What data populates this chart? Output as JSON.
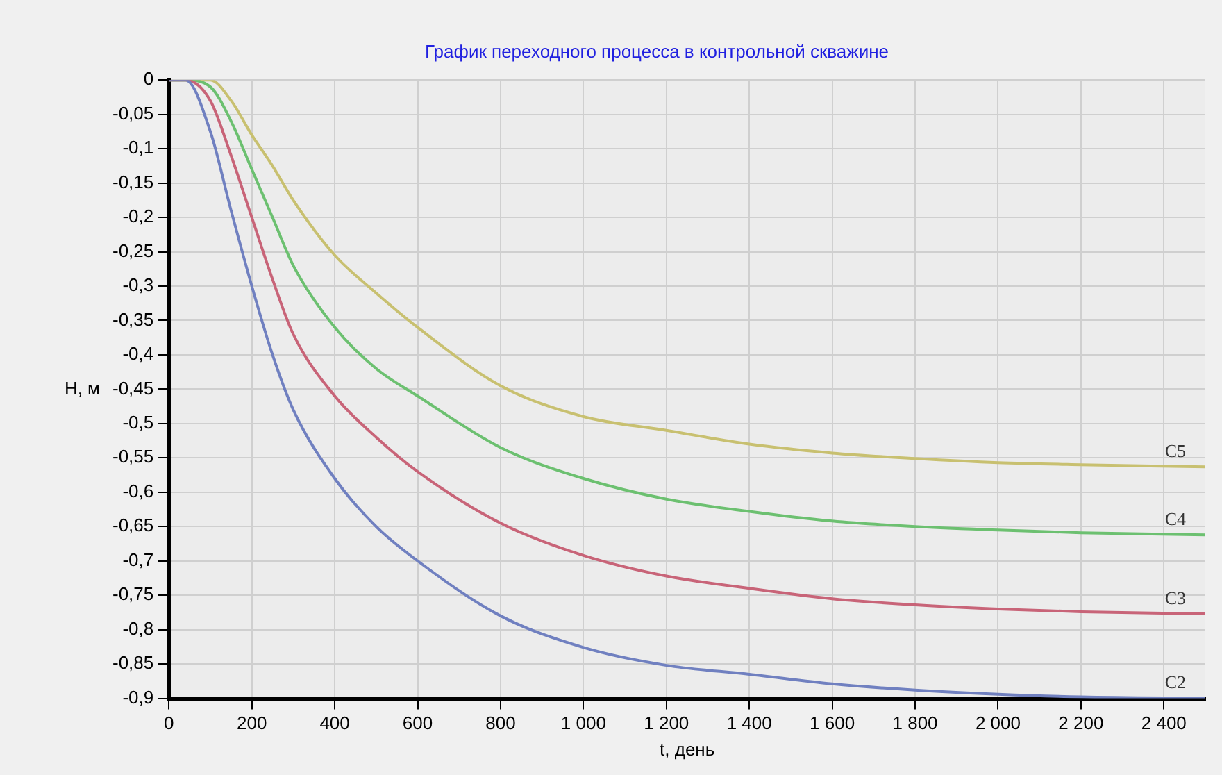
{
  "chart_data": {
    "type": "line",
    "title": "График переходного процесса в контрольной скважине",
    "xlabel": "t, день",
    "ylabel": "H, м",
    "xlim": [
      0,
      2500
    ],
    "ylim": [
      -0.9,
      0
    ],
    "xticks": [
      0,
      200,
      400,
      600,
      800,
      {
        "value": 1000,
        "label": "1 000"
      },
      {
        "value": 1200,
        "label": "1 200"
      },
      {
        "value": 1400,
        "label": "1 400"
      },
      {
        "value": 1600,
        "label": "1 600"
      },
      {
        "value": 1800,
        "label": "1 800"
      },
      {
        "value": 2000,
        "label": "2 000"
      },
      {
        "value": 2200,
        "label": "2 200"
      },
      {
        "value": 2400,
        "label": "2 400"
      }
    ],
    "yticks": [
      0,
      {
        "value": -0.05,
        "label": "-0,05"
      },
      {
        "value": -0.1,
        "label": "-0,1"
      },
      {
        "value": -0.15,
        "label": "-0,15"
      },
      {
        "value": -0.2,
        "label": "-0,2"
      },
      {
        "value": -0.25,
        "label": "-0,25"
      },
      {
        "value": -0.3,
        "label": "-0,3"
      },
      {
        "value": -0.35,
        "label": "-0,35"
      },
      {
        "value": -0.4,
        "label": "-0,4"
      },
      {
        "value": -0.45,
        "label": "-0,45"
      },
      {
        "value": -0.5,
        "label": "-0,5"
      },
      {
        "value": -0.55,
        "label": "-0,55"
      },
      {
        "value": -0.6,
        "label": "-0,6"
      },
      {
        "value": -0.65,
        "label": "-0,65"
      },
      {
        "value": -0.7,
        "label": "-0,7"
      },
      {
        "value": -0.75,
        "label": "-0,75"
      },
      {
        "value": -0.8,
        "label": "-0,8"
      },
      {
        "value": -0.85,
        "label": "-0,85"
      },
      {
        "value": -0.9,
        "label": "-0,9"
      }
    ],
    "grid": true,
    "legend": false,
    "marker": "none",
    "line_style": "solid",
    "x": [
      0,
      40,
      100,
      150,
      200,
      250,
      300,
      400,
      500,
      600,
      800,
      1000,
      1200,
      1400,
      1600,
      1800,
      2000,
      2200,
      2500
    ],
    "series": [
      {
        "name": "C2",
        "color": "#7080c0",
        "values": [
          0,
          0,
          -0.075,
          -0.19,
          -0.3,
          -0.4,
          -0.48,
          -0.58,
          -0.65,
          -0.7,
          -0.78,
          -0.826,
          -0.852,
          -0.865,
          -0.879,
          -0.888,
          -0.894,
          -0.898,
          -0.9
        ]
      },
      {
        "name": "C3",
        "color": "#c86478",
        "values": [
          0,
          0,
          -0.03,
          -0.11,
          -0.2,
          -0.29,
          -0.37,
          -0.46,
          -0.52,
          -0.57,
          -0.645,
          -0.692,
          -0.722,
          -0.74,
          -0.755,
          -0.764,
          -0.77,
          -0.774,
          -0.777
        ]
      },
      {
        "name": "C4",
        "color": "#6cc070",
        "values": [
          0,
          0,
          -0.01,
          -0.06,
          -0.13,
          -0.2,
          -0.27,
          -0.36,
          -0.42,
          -0.46,
          -0.535,
          -0.58,
          -0.61,
          -0.628,
          -0.642,
          -0.65,
          -0.655,
          -0.659,
          -0.662
        ]
      },
      {
        "name": "C5",
        "color": "#c8c070",
        "values": [
          0,
          0,
          0,
          -0.03,
          -0.08,
          -0.125,
          -0.175,
          -0.255,
          -0.31,
          -0.36,
          -0.445,
          -0.49,
          -0.51,
          -0.53,
          -0.543,
          -0.551,
          -0.557,
          -0.56,
          -0.563
        ]
      }
    ]
  }
}
